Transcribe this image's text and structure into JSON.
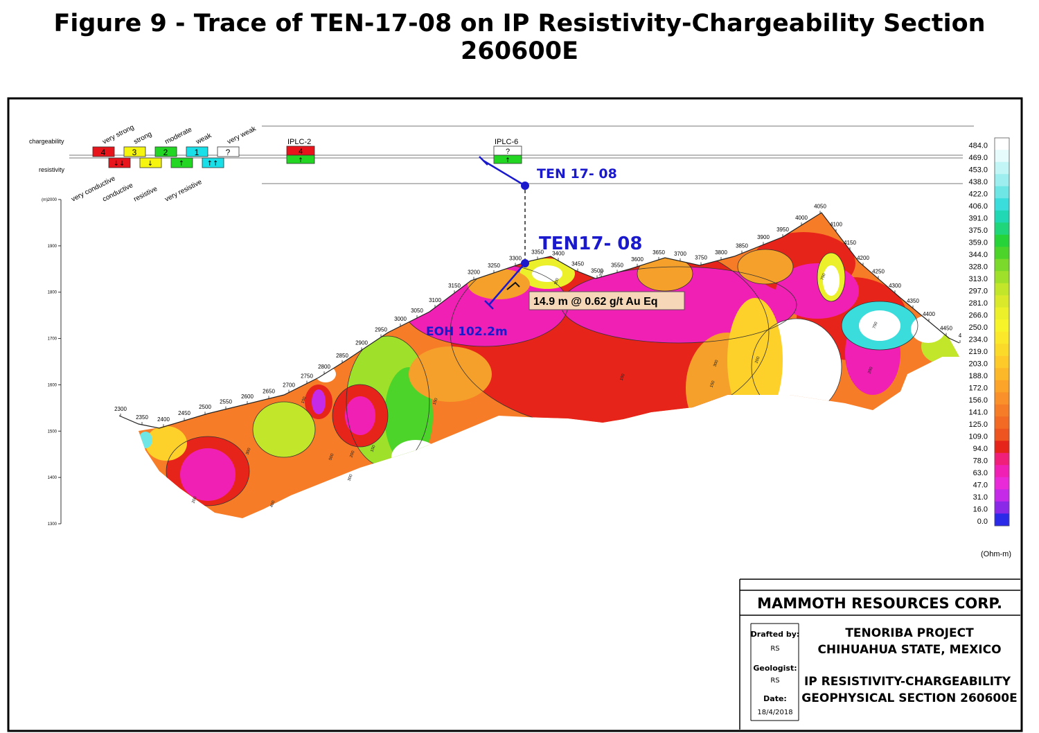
{
  "figure_title": "Figure 9 - Trace of TEN-17-08 on IP Resistivity-Chargeability Section 260600E",
  "legend": {
    "chargeability_label": "chargeability",
    "resistivity_label": "resistivity",
    "chargeability_classes": [
      {
        "code": "4",
        "name": "very strong",
        "color": "#e8141b"
      },
      {
        "code": "3",
        "name": "strong",
        "color": "#f5f50f"
      },
      {
        "code": "2",
        "name": "moderate",
        "color": "#23d623"
      },
      {
        "code": "1",
        "name": "weak",
        "color": "#19dfe8"
      },
      {
        "code": "?",
        "name": "very weak",
        "color": "#ffffff"
      }
    ],
    "resistivity_classes": [
      {
        "symbol": "↓↓",
        "name": "very conductive",
        "color": "#e8141b"
      },
      {
        "symbol": "↓",
        "name": "conductive",
        "color": "#f5f50f"
      },
      {
        "symbol": "↑",
        "name": "resistive",
        "color": "#23d623"
      },
      {
        "symbol": "↑↑",
        "name": "very resistive",
        "color": "#19dfe8"
      }
    ]
  },
  "anomalies": [
    {
      "label": "IPLC-2",
      "code": "4",
      "symbol": "↑",
      "charge_color": "#e8141b",
      "resist_color": "#23d623"
    },
    {
      "label": "IPLC-6",
      "code": "?",
      "symbol": "↑",
      "charge_color": "#ffffff",
      "resist_color": "#23d623"
    }
  ],
  "drillhole": {
    "plan_label": "TEN 17- 08",
    "section_label": "TEN17- 08",
    "intercept": "14.9 m @ 0.62 g/t Au Eq",
    "eoh": "EOH 102.2m"
  },
  "elevation_axis": {
    "unit": "(m)",
    "ticks": [
      "2000",
      "1900",
      "1800",
      "1700",
      "1600",
      "1500",
      "1400",
      "1300"
    ]
  },
  "stations": [
    "2300",
    "2350",
    "2400",
    "2450",
    "2500",
    "2550",
    "2600",
    "2650",
    "2700",
    "2750",
    "2800",
    "2850",
    "2900",
    "2950",
    "3000",
    "3050",
    "3100",
    "3150",
    "3200",
    "3250",
    "3300",
    "3350",
    "3400",
    "3450",
    "3500",
    "3550",
    "3600",
    "3650",
    "3700",
    "3750",
    "3800",
    "3850",
    "3900",
    "3950",
    "4000",
    "4050",
    "4100",
    "4150",
    "4200",
    "4250",
    "4300",
    "4350",
    "4400",
    "4450",
    "4"
  ],
  "contour_labels": [
    "150",
    "200",
    "300",
    "200",
    "150",
    "300",
    "400",
    "500",
    "750",
    "750",
    "200",
    "300",
    "200",
    "150",
    "100",
    "100",
    "150",
    "200"
  ],
  "colorbar": {
    "unit": "(Ohm-m)",
    "values": [
      "484.0",
      "469.0",
      "453.0",
      "438.0",
      "422.0",
      "406.0",
      "391.0",
      "375.0",
      "359.0",
      "344.0",
      "328.0",
      "313.0",
      "297.0",
      "281.0",
      "266.0",
      "250.0",
      "234.0",
      "219.0",
      "203.0",
      "188.0",
      "172.0",
      "156.0",
      "141.0",
      "125.0",
      "109.0",
      "94.0",
      "78.0",
      "63.0",
      "47.0",
      "31.0",
      "16.0",
      "0.0"
    ],
    "colors": [
      "#ffffff",
      "#e6fbfb",
      "#c2f5f5",
      "#9deeee",
      "#6fe6e6",
      "#3bdcdc",
      "#20d9b4",
      "#20d67a",
      "#26d43a",
      "#4cd42a",
      "#7ad92a",
      "#9fe02a",
      "#c2e62a",
      "#daea2a",
      "#ecf02a",
      "#f8f42a",
      "#fbe82a",
      "#fcda2a",
      "#fdca2a",
      "#fdb82a",
      "#fca42a",
      "#fa9029",
      "#f77c27",
      "#f26a24",
      "#ee5420",
      "#e6241a",
      "#f0207a",
      "#f020b4",
      "#e82ad8",
      "#c42ae8",
      "#8a2ae8",
      "#2a2ae8"
    ]
  },
  "title_block": {
    "company": "MAMMOTH RESOURCES CORP.",
    "drafted_by_label": "Drafted by:",
    "drafted_by": "RS",
    "geologist_label": "Geologist:",
    "geologist": "RS",
    "date_label": "Date:",
    "date": "18/4/2018",
    "project_line1": "TENORIBA PROJECT",
    "project_line2": "CHIHUAHUA STATE, MEXICO",
    "section_line1": "IP RESISTIVITY-CHARGEABILITY",
    "section_line2": "GEOPHYSICAL SECTION 260600E"
  }
}
